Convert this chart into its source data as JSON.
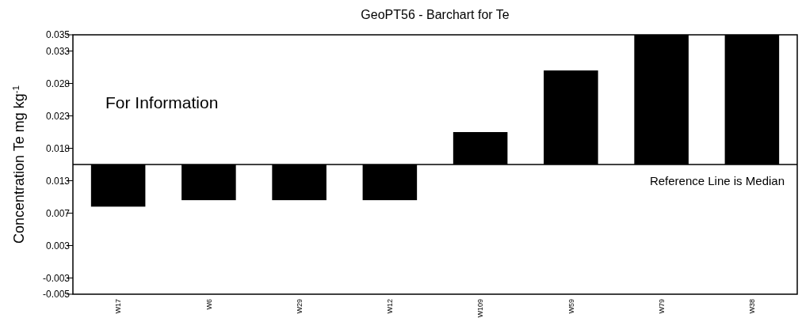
{
  "chart_data": {
    "type": "bar",
    "title": "GeoPT56 - Barchart for Te",
    "ylabel": "Concentration Te mg kg$^{-1}$",
    "categories": [
      "W17",
      "W6",
      "W29",
      "W12",
      "W109",
      "W59",
      "W79",
      "W38"
    ],
    "base": [
      0.015,
      0.015,
      0.015,
      0.015,
      0.015,
      0.015,
      0.015,
      0.015
    ],
    "values": [
      -0.0065,
      -0.0055,
      -0.0055,
      -0.0055,
      0.005,
      0.0145,
      0.02,
      0.02
    ],
    "color": "#000000",
    "ylim": [
      -0.005,
      0.035
    ],
    "yticks": [
      {
        "value": -0.005,
        "label": "-0.005"
      },
      {
        "value": -0.0025,
        "label": "-0.003"
      },
      {
        "value": 0.0025,
        "label": "0.003"
      },
      {
        "value": 0.0075,
        "label": "0.007"
      },
      {
        "value": 0.0125,
        "label": "0.013"
      },
      {
        "value": 0.0175,
        "label": "0.018"
      },
      {
        "value": 0.0225,
        "label": "0.023"
      },
      {
        "value": 0.0275,
        "label": "0.028"
      },
      {
        "value": 0.0325,
        "label": "0.033"
      },
      {
        "value": 0.035,
        "label": "0.035"
      }
    ],
    "ref_lines": [
      {
        "axis": "y",
        "value": 0.015,
        "label": "Reference Line is Median",
        "color": "#000000"
      }
    ],
    "annotations": [
      "For Information"
    ]
  }
}
